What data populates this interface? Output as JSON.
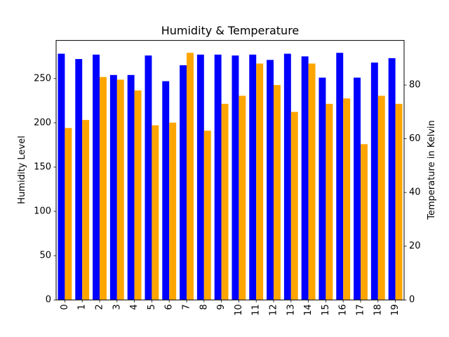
{
  "chart_data": {
    "type": "bar",
    "title": "Humidity & Temperature",
    "xlabel": "",
    "categories": [
      "0",
      "1",
      "2",
      "3",
      "4",
      "5",
      "6",
      "7",
      "8",
      "9",
      "10",
      "11",
      "12",
      "13",
      "14",
      "15",
      "16",
      "17",
      "18",
      "19"
    ],
    "series": [
      {
        "axis": "left",
        "color": "#0000ff",
        "values": [
          278,
          272,
          277,
          254,
          254,
          276,
          247,
          265,
          277,
          277,
          276,
          277,
          271,
          278,
          275,
          251,
          279,
          251,
          268,
          273
        ]
      },
      {
        "axis": "right",
        "color": "#ffa500",
        "values": [
          64,
          67,
          83,
          82,
          78,
          65,
          66,
          92,
          63,
          73,
          76,
          88,
          80,
          70,
          88,
          73,
          75,
          58,
          76,
          73
        ]
      }
    ],
    "y_left": {
      "label": "Humidity Level",
      "ylim": [
        0,
        293
      ],
      "ticks": [
        "0",
        "50",
        "100",
        "150",
        "200",
        "250"
      ]
    },
    "y_right": {
      "label": "Temperature in Kelvin",
      "ylim": [
        0,
        96.6
      ],
      "ticks": [
        "0",
        "20",
        "40",
        "60",
        "80"
      ]
    },
    "grid": false,
    "legend": "none"
  }
}
